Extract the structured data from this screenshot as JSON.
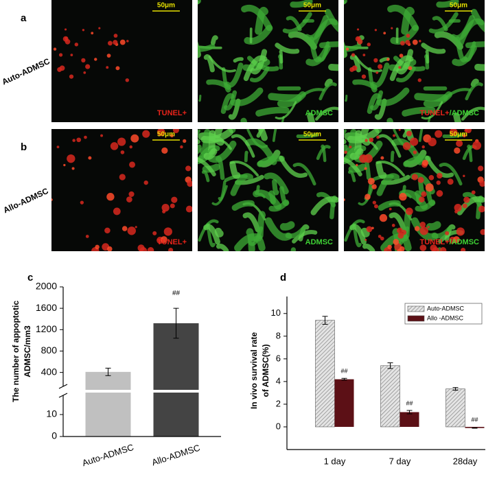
{
  "figure_panels": [
    {
      "label": "a",
      "row_label": "Auto-ADMSC",
      "images": [
        {
          "scale": "50μm",
          "caption": [
            "TUNEL+"
          ]
        },
        {
          "scale": "50μm",
          "caption": [
            "ADMSC"
          ]
        },
        {
          "scale": "50μm",
          "caption": [
            "TUNEL+",
            "/ADMSC"
          ]
        }
      ]
    },
    {
      "label": "b",
      "row_label": "Allo-ADMSC",
      "images": [
        {
          "scale": "50μm",
          "caption": [
            "TUNEL+"
          ]
        },
        {
          "scale": "50μm",
          "caption": [
            "ADMSC"
          ]
        },
        {
          "scale": "50μm",
          "caption": [
            "TUNEL+",
            "/ADMSC"
          ]
        }
      ]
    }
  ],
  "chart_data": [
    {
      "type": "bar",
      "panel": "c",
      "ylabel": [
        "The number of appoptotic",
        "ADMSC/mm3"
      ],
      "categories": [
        "Auto-ADMSC",
        "Allo-ADMSC"
      ],
      "values": [
        410,
        1320
      ],
      "errors": [
        70,
        280
      ],
      "colors": [
        "#c0c0c0",
        "#444444"
      ],
      "annotations": [
        null,
        "##"
      ],
      "y_segments": [
        {
          "ylim": [
            0,
            20
          ],
          "yticks": [
            0,
            10
          ]
        },
        {
          "ylim": [
            100,
            2000
          ],
          "yticks": [
            400,
            800,
            1200,
            1600,
            2000
          ]
        }
      ]
    },
    {
      "type": "grouped-bar",
      "panel": "d",
      "ylabel": [
        "In vivo survival rate",
        "of ADMSC(%)"
      ],
      "categories": [
        "1 day",
        "7 day",
        "28day"
      ],
      "series": [
        {
          "name": "Auto-ADMSC",
          "color": "#d9d9d9",
          "hatch": true,
          "values": [
            9.4,
            5.4,
            3.35
          ],
          "errors": [
            0.35,
            0.25,
            0.12
          ],
          "annotations": [
            null,
            null,
            null
          ]
        },
        {
          "name": "Allo -ADMSC",
          "color": "#5c1016",
          "hatch": false,
          "values": [
            4.2,
            1.3,
            -0.1
          ],
          "errors": [
            0.08,
            0.15,
            0.02
          ],
          "annotations": [
            "##",
            "##",
            "##"
          ]
        }
      ],
      "ylim": [
        -2,
        11.5
      ],
      "yticks": [
        0,
        2,
        4,
        6,
        8,
        10
      ],
      "legend": "upper right"
    }
  ]
}
